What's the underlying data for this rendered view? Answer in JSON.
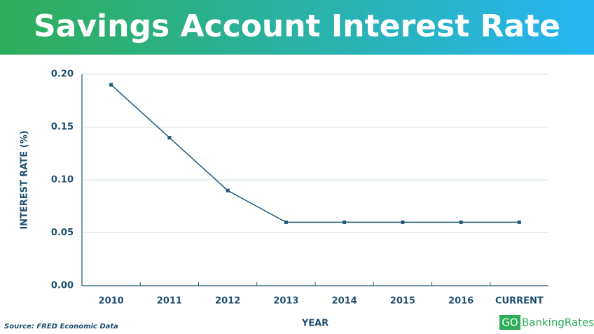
{
  "chart_data": {
    "type": "line",
    "title": "Savings Account Interest Rate",
    "x_label": "YEAR",
    "y_label": "INTEREST RATE (%)",
    "categories": [
      "2010",
      "2011",
      "2012",
      "2013",
      "2014",
      "2015",
      "2016",
      "CURRENT"
    ],
    "series": [
      {
        "name": "Interest Rate",
        "color": "#1d5a78",
        "values": [
          0.19,
          0.14,
          0.09,
          0.06,
          0.06,
          0.06,
          0.06,
          0.06
        ]
      }
    ],
    "ylim": [
      0,
      0.2
    ],
    "yticks": [
      {
        "value": 0,
        "label": "0.00"
      },
      0.05,
      {
        "value": 0.1,
        "label": "0.10"
      },
      0.15,
      {
        "value": 0.2,
        "label": "0.20"
      }
    ],
    "grid": true,
    "source": "Source: FRED Economic Data",
    "logo": {
      "prefix": "GO",
      "name": "BankingRates"
    }
  }
}
